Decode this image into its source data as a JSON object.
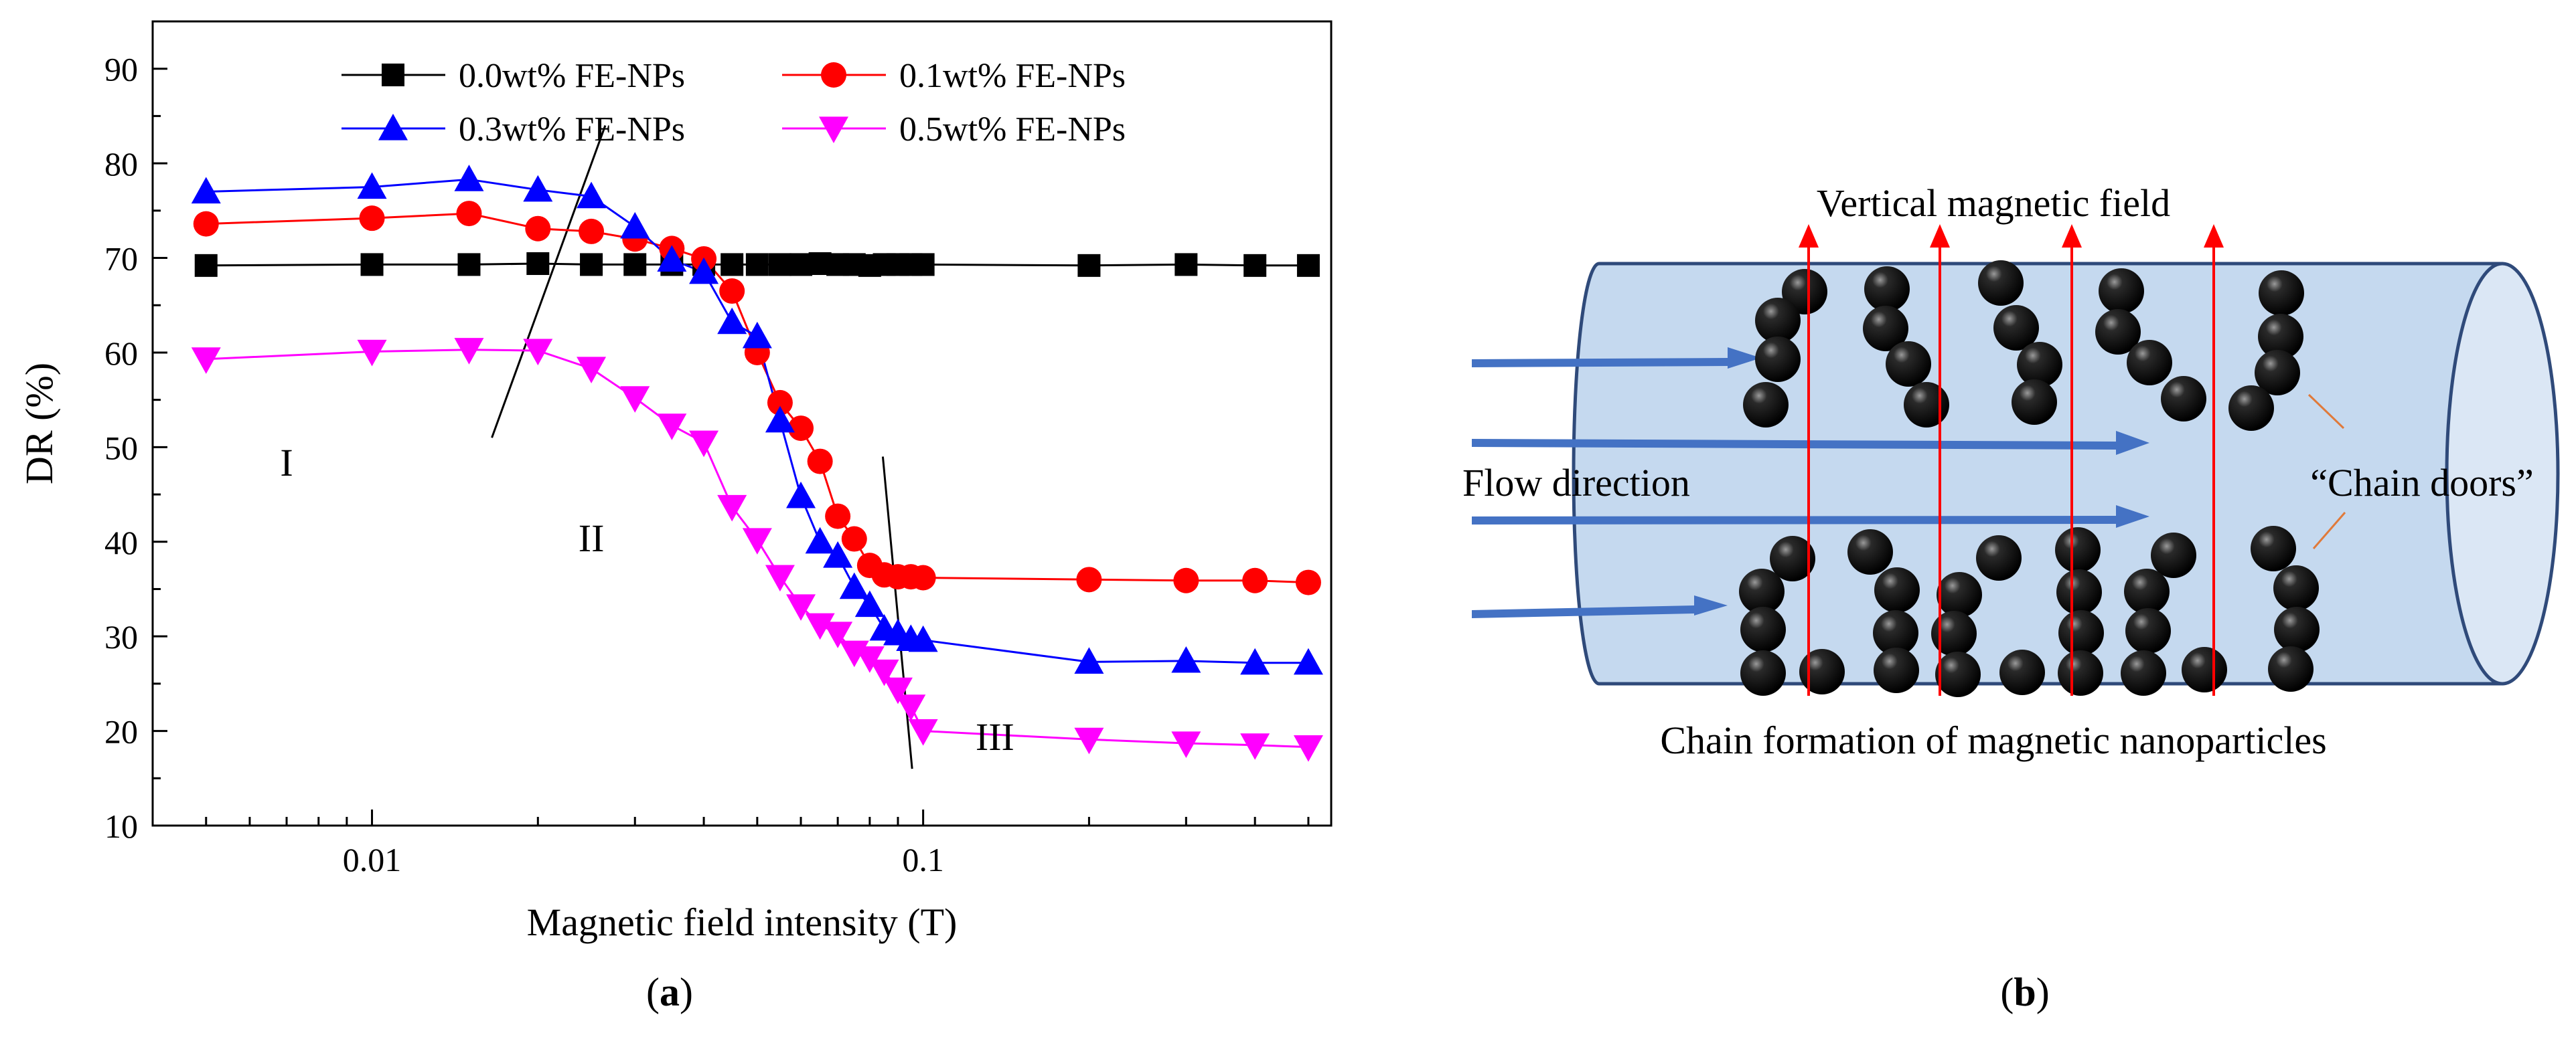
{
  "chart_data": {
    "type": "line",
    "xscale": "log",
    "xlabel": "Magnetic field intensity (T)",
    "ylabel": "DR (%)",
    "xlim": [
      0.004,
      0.55
    ],
    "ylim": [
      10,
      95
    ],
    "xticks": [
      {
        "value": 0.01,
        "label": "0.01"
      },
      {
        "value": 0.1,
        "label": "0.1"
      }
    ],
    "yticks": [
      10,
      20,
      30,
      40,
      50,
      60,
      70,
      80,
      90
    ],
    "legend_position": "top",
    "series": [
      {
        "name": "0.0wt% FE-NPs",
        "color": "#000000",
        "marker": "square",
        "x": [
          0.005,
          0.01,
          0.015,
          0.02,
          0.025,
          0.03,
          0.035,
          0.04,
          0.045,
          0.05,
          0.055,
          0.06,
          0.065,
          0.07,
          0.075,
          0.08,
          0.085,
          0.09,
          0.095,
          0.1,
          0.2,
          0.3,
          0.4,
          0.5
        ],
        "y": [
          69.2,
          69.3,
          69.3,
          69.4,
          69.3,
          69.3,
          69.3,
          69.3,
          69.3,
          69.3,
          69.3,
          69.3,
          69.4,
          69.3,
          69.3,
          69.2,
          69.3,
          69.3,
          69.3,
          69.3,
          69.2,
          69.3,
          69.2,
          69.2
        ]
      },
      {
        "name": "0.1wt% FE-NPs",
        "color": "#ff0000",
        "marker": "circle",
        "x": [
          0.005,
          0.01,
          0.015,
          0.02,
          0.025,
          0.03,
          0.035,
          0.04,
          0.045,
          0.05,
          0.055,
          0.06,
          0.065,
          0.07,
          0.075,
          0.08,
          0.085,
          0.09,
          0.095,
          0.1,
          0.2,
          0.3,
          0.4,
          0.5
        ],
        "y": [
          73.6,
          74.2,
          74.7,
          73.1,
          72.8,
          72.0,
          71.0,
          69.9,
          66.5,
          60.0,
          54.7,
          52.0,
          48.5,
          42.7,
          40.3,
          37.5,
          36.5,
          36.3,
          36.3,
          36.2,
          36.0,
          35.9,
          35.9,
          35.7
        ]
      },
      {
        "name": "0.3wt% FE-NPs",
        "color": "#0000ff",
        "marker": "triangle-up",
        "x": [
          0.005,
          0.01,
          0.015,
          0.02,
          0.025,
          0.03,
          0.035,
          0.04,
          0.045,
          0.05,
          0.055,
          0.06,
          0.065,
          0.07,
          0.075,
          0.08,
          0.085,
          0.09,
          0.095,
          0.1,
          0.2,
          0.3,
          0.4,
          0.5
        ],
        "y": [
          77.0,
          77.5,
          78.3,
          77.2,
          76.5,
          73.3,
          69.8,
          68.5,
          63.2,
          61.7,
          52.8,
          44.8,
          40.0,
          38.5,
          35.2,
          33.3,
          30.8,
          30.3,
          29.7,
          29.6,
          27.3,
          27.4,
          27.2,
          27.2
        ]
      },
      {
        "name": "0.5wt% FE-NPs",
        "color": "#ff00ff",
        "marker": "triangle-down",
        "x": [
          0.005,
          0.01,
          0.015,
          0.02,
          0.025,
          0.03,
          0.035,
          0.04,
          0.045,
          0.05,
          0.055,
          0.06,
          0.065,
          0.07,
          0.075,
          0.08,
          0.085,
          0.09,
          0.095,
          0.1,
          0.2,
          0.3,
          0.4,
          0.5
        ],
        "y": [
          59.3,
          60.1,
          60.3,
          60.2,
          58.3,
          55.2,
          52.3,
          50.5,
          43.7,
          40.2,
          36.3,
          33.2,
          31.2,
          30.3,
          28.3,
          27.7,
          26.3,
          24.4,
          22.6,
          20.0,
          19.1,
          18.7,
          18.5,
          18.3
        ]
      }
    ],
    "region_labels": [
      {
        "text": "I",
        "x": 0.007,
        "y": 47
      },
      {
        "text": "II",
        "x": 0.025,
        "y": 39
      },
      {
        "text": "III",
        "x": 0.135,
        "y": 18
      }
    ],
    "boundary_lines": [
      {
        "x1": 0.0165,
        "y1": 51,
        "x2": 0.0265,
        "y2": 84
      },
      {
        "x1": 0.0845,
        "y1": 49,
        "x2": 0.0955,
        "y2": 16
      }
    ]
  },
  "captions": {
    "a": "a",
    "b": "b"
  },
  "diagram": {
    "title": "Vertical magnetic field",
    "flow_label": "Flow direction",
    "chain_doors_label": "“Chain doors”",
    "caption": "Chain formation of magnetic nanoparticles",
    "colors": {
      "pipe_fill": "#c5d9ef",
      "pipe_stroke": "#2f4a7a",
      "flow_arrow": "#4472c4",
      "field_arrow": "#ff0000",
      "particle": "#000000",
      "leader_line": "#e07a3a"
    }
  }
}
